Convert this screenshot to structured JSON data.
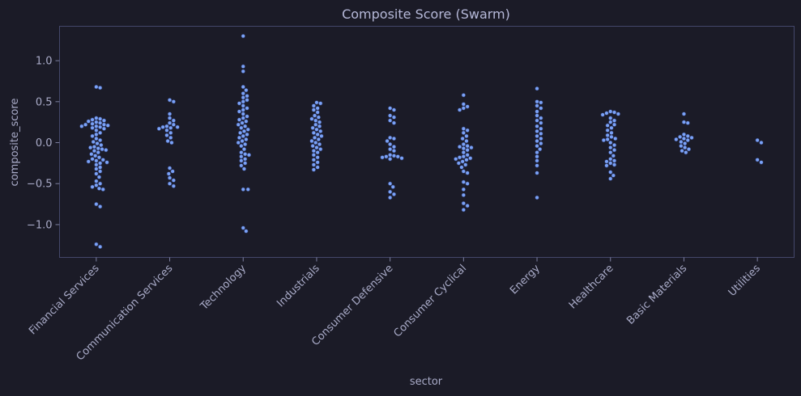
{
  "chart_data": {
    "type": "scatter",
    "subtype": "swarm",
    "title": "Composite Score (Swarm)",
    "xlabel": "sector",
    "ylabel": "composite_score",
    "ylim": [
      -1.4,
      1.42
    ],
    "yticks": [
      1.0,
      0.5,
      0.0,
      -0.5,
      -1.0
    ],
    "ytick_labels": [
      "1.0",
      "0.5",
      "0.0",
      "−0.5",
      "−1.0"
    ],
    "grid": false,
    "colors": {
      "background": "#1b1b27",
      "point_fill": "#7aa2f7",
      "point_edge": "#2f3a6b",
      "frame": "#44476a",
      "text": "#a9abc8"
    },
    "categories": [
      "Financial Services",
      "Communication Services",
      "Technology",
      "Industrials",
      "Consumer Defensive",
      "Consumer Cyclical",
      "Energy",
      "Healthcare",
      "Basic Materials",
      "Utilities"
    ],
    "values": [
      [
        0.68,
        0.67,
        0.3,
        0.29,
        0.28,
        0.27,
        0.26,
        0.25,
        0.24,
        0.23,
        0.22,
        0.22,
        0.21,
        0.2,
        0.2,
        0.19,
        0.18,
        0.17,
        0.15,
        0.12,
        0.1,
        0.08,
        0.05,
        0.03,
        0.01,
        -0.01,
        -0.03,
        -0.05,
        -0.06,
        -0.07,
        -0.08,
        -0.09,
        -0.1,
        -0.12,
        -0.14,
        -0.16,
        -0.18,
        -0.2,
        -0.21,
        -0.22,
        -0.23,
        -0.24,
        -0.25,
        -0.27,
        -0.3,
        -0.32,
        -0.35,
        -0.38,
        -0.42,
        -0.47,
        -0.5,
        -0.52,
        -0.54,
        -0.56,
        -0.57,
        -0.75,
        -0.78,
        -1.24,
        -1.27
      ],
      [
        0.52,
        0.5,
        0.35,
        0.3,
        0.27,
        0.24,
        0.22,
        0.2,
        0.19,
        0.19,
        0.18,
        0.17,
        0.15,
        0.12,
        0.09,
        0.06,
        0.02,
        0.0,
        -0.31,
        -0.35,
        -0.38,
        -0.43,
        -0.46,
        -0.5,
        -0.53
      ],
      [
        1.3,
        0.93,
        0.87,
        0.68,
        0.64,
        0.6,
        0.57,
        0.55,
        0.52,
        0.5,
        0.48,
        0.45,
        0.42,
        0.4,
        0.38,
        0.35,
        0.32,
        0.3,
        0.28,
        0.26,
        0.24,
        0.22,
        0.2,
        0.18,
        0.16,
        0.14,
        0.12,
        0.1,
        0.08,
        0.06,
        0.04,
        0.02,
        0.0,
        -0.02,
        -0.04,
        -0.08,
        -0.12,
        -0.14,
        -0.15,
        -0.17,
        -0.2,
        -0.22,
        -0.25,
        -0.28,
        -0.32,
        -0.57,
        -0.57,
        -1.04,
        -1.08
      ],
      [
        0.49,
        0.48,
        0.45,
        0.42,
        0.4,
        0.37,
        0.33,
        0.31,
        0.29,
        0.27,
        0.25,
        0.22,
        0.2,
        0.18,
        0.16,
        0.14,
        0.12,
        0.1,
        0.08,
        0.06,
        0.04,
        0.02,
        0.0,
        -0.02,
        -0.04,
        -0.06,
        -0.08,
        -0.1,
        -0.12,
        -0.15,
        -0.18,
        -0.21,
        -0.24,
        -0.27,
        -0.3,
        -0.33
      ],
      [
        0.42,
        0.4,
        0.33,
        0.31,
        0.27,
        0.24,
        0.06,
        0.05,
        0.02,
        -0.02,
        -0.05,
        -0.08,
        -0.1,
        -0.15,
        -0.16,
        -0.17,
        -0.17,
        -0.18,
        -0.19,
        -0.2,
        -0.5,
        -0.54,
        -0.6,
        -0.63,
        -0.67
      ],
      [
        0.58,
        0.47,
        0.44,
        0.42,
        0.4,
        0.17,
        0.15,
        0.12,
        0.08,
        0.05,
        0.02,
        -0.02,
        -0.04,
        -0.05,
        -0.06,
        -0.07,
        -0.09,
        -0.12,
        -0.15,
        -0.17,
        -0.18,
        -0.19,
        -0.2,
        -0.21,
        -0.23,
        -0.25,
        -0.27,
        -0.3,
        -0.35,
        -0.37,
        -0.48,
        -0.5,
        -0.57,
        -0.64,
        -0.74,
        -0.77,
        -0.82
      ],
      [
        0.66,
        0.5,
        0.49,
        0.45,
        0.42,
        0.38,
        0.33,
        0.3,
        0.27,
        0.24,
        0.2,
        0.17,
        0.14,
        0.11,
        0.08,
        0.05,
        0.02,
        -0.01,
        -0.04,
        -0.08,
        -0.12,
        -0.17,
        -0.22,
        -0.28,
        -0.37,
        -0.67
      ],
      [
        0.38,
        0.37,
        0.36,
        0.35,
        0.34,
        0.3,
        0.27,
        0.25,
        0.22,
        0.21,
        0.18,
        0.15,
        0.12,
        0.09,
        0.07,
        0.05,
        0.04,
        0.03,
        0.0,
        -0.03,
        -0.06,
        -0.09,
        -0.12,
        -0.16,
        -0.2,
        -0.22,
        -0.23,
        -0.25,
        -0.27,
        -0.28,
        -0.36,
        -0.4,
        -0.44
      ],
      [
        0.35,
        0.25,
        0.24,
        0.1,
        0.08,
        0.07,
        0.06,
        0.05,
        0.04,
        0.03,
        0.01,
        -0.01,
        -0.04,
        -0.06,
        -0.08,
        -0.1,
        -0.12
      ],
      [
        0.03,
        0.0,
        -0.21,
        -0.24
      ]
    ]
  }
}
